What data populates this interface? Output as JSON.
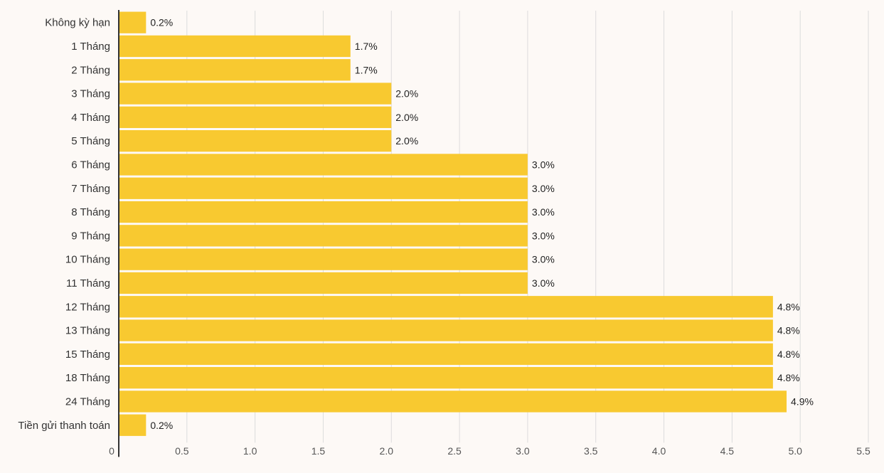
{
  "chart_data": {
    "type": "bar",
    "orientation": "horizontal",
    "categories": [
      "Không kỳ hạn",
      "1 Tháng",
      "2 Tháng",
      "3 Tháng",
      "4 Tháng",
      "5 Tháng",
      "6 Tháng",
      "7 Tháng",
      "8 Tháng",
      "9 Tháng",
      "10 Tháng",
      "11 Tháng",
      "12 Tháng",
      "13 Tháng",
      "15 Tháng",
      "18 Tháng",
      "24 Tháng",
      "Tiền gửi thanh toán"
    ],
    "values": [
      0.2,
      1.7,
      1.7,
      2.0,
      2.0,
      2.0,
      3.0,
      3.0,
      3.0,
      3.0,
      3.0,
      3.0,
      4.8,
      4.8,
      4.8,
      4.8,
      4.9,
      0.2
    ],
    "value_labels": [
      "0.2%",
      "1.7%",
      "1.7%",
      "2.0%",
      "2.0%",
      "2.0%",
      "3.0%",
      "3.0%",
      "3.0%",
      "3.0%",
      "3.0%",
      "3.0%",
      "4.8%",
      "4.8%",
      "4.8%",
      "4.8%",
      "4.9%",
      "0.2%"
    ],
    "xticks": [
      "0",
      "0.5",
      "1.0",
      "1.5",
      "2.0",
      "2.5",
      "3.0",
      "3.5",
      "4.0",
      "4.5",
      "5.0",
      "5.5"
    ],
    "xlim": [
      0,
      5.5
    ],
    "grid": true,
    "title": "",
    "xlabel": "",
    "ylabel": "",
    "bar_color": "#f8c930",
    "background_color": "#fdf9f6"
  }
}
